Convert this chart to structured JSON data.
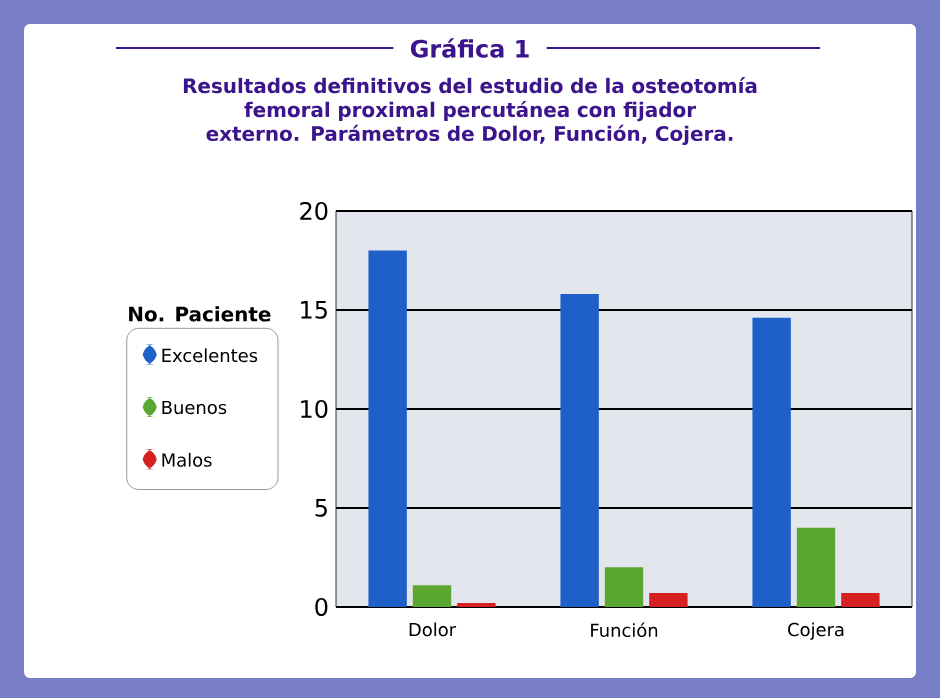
{
  "chart_data": {
    "type": "bar",
    "title": "Gráfica 1",
    "subtitle": "Resultados definitivos del estudio de la osteotomía femoral proximal percutánea con fijador externo. Parámetros de Dolor, Función, Cojera.",
    "ylabel": "No. Paciente",
    "categories": [
      "Dolor",
      "Función",
      "Cojera"
    ],
    "series": [
      {
        "name": "Excelentes",
        "color": "#1f5fc8",
        "values": [
          18,
          15.8,
          14.6
        ]
      },
      {
        "name": "Buenos",
        "color": "#5aa832",
        "values": [
          1.1,
          2,
          4
        ]
      },
      {
        "name": "Malos",
        "color": "#d42020",
        "values": [
          0.2,
          0.7,
          0.7
        ]
      }
    ],
    "ylim": [
      0,
      20
    ],
    "yticks": [
      0,
      5,
      10,
      15,
      20
    ],
    "grid": "y",
    "legend": "left"
  }
}
